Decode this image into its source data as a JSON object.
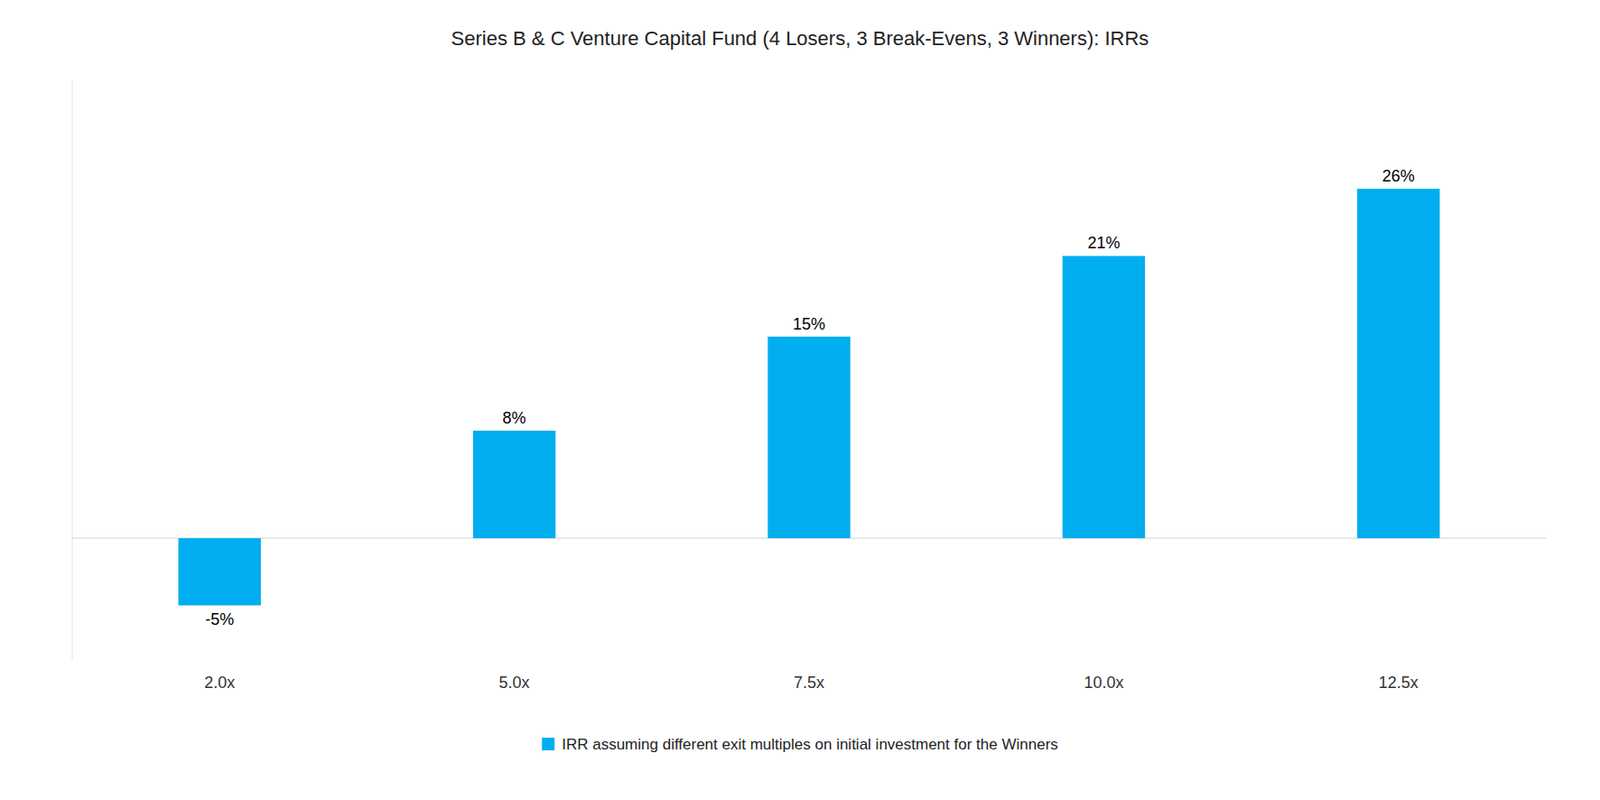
{
  "chart_data": {
    "type": "bar",
    "title": "Series B & C Venture Capital Fund (4 Losers, 3 Break-Evens, 3 Winners): IRRs",
    "categories": [
      "2.0x",
      "5.0x",
      "7.5x",
      "10.0x",
      "12.5x"
    ],
    "series": [
      {
        "name": "IRR assuming different exit multiples on initial investment for the Winners",
        "color": "#00AEEF",
        "values": [
          -5,
          8,
          15,
          21,
          26
        ],
        "value_labels": [
          "-5%",
          "8%",
          "15%",
          "21%",
          "26%"
        ]
      }
    ],
    "ylim": [
      -9,
      34
    ],
    "grid": false,
    "legend": "bottom",
    "data_labels": true,
    "tick_labels": "x"
  }
}
